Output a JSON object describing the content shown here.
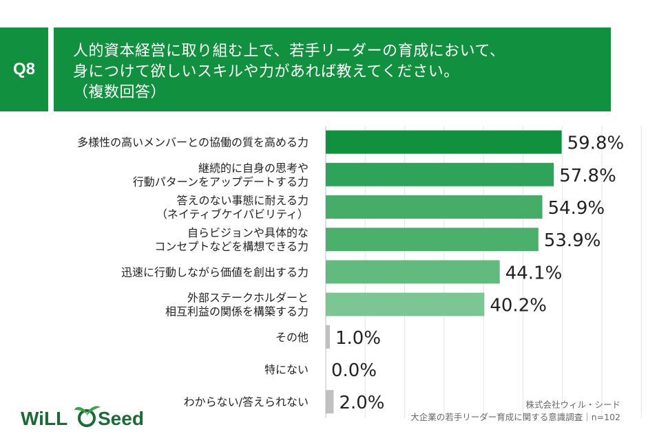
{
  "question": {
    "badge": "Q8",
    "lines": [
      "人的資本経営に取り組む上で、若手リーダーの育成において、",
      "身につけて欲しいスキルや力があれば教えてください。",
      "（複数回答）"
    ]
  },
  "chart_data": {
    "type": "bar",
    "orientation": "horizontal",
    "unit": "%",
    "xlim": [
      0,
      100
    ],
    "grid": true,
    "categories": [
      [
        "多様性の高いメンバーとの協働の質を高める力"
      ],
      [
        "継続的に自身の思考や",
        "行動パターンをアップデートする力"
      ],
      [
        "答えのない事態に耐える力",
        "（ネイティブケイパビリティ）"
      ],
      [
        "自らビジョンや具体的な",
        "コンセプトなどを構想できる力"
      ],
      [
        "迅速に行動しながら価値を創出する力"
      ],
      [
        "外部ステークホルダーと",
        "相互利益の関係を構築する力"
      ],
      [
        "その他"
      ],
      [
        "特にない"
      ],
      [
        "わからない/答えられない"
      ]
    ],
    "values": [
      59.8,
      57.8,
      54.9,
      53.9,
      44.1,
      40.2,
      1.0,
      0.0,
      2.0
    ],
    "value_labels": [
      "59.8%",
      "57.8%",
      "54.9%",
      "53.9%",
      "44.1%",
      "40.2%",
      "1.0%",
      "0.0%",
      "2.0%"
    ],
    "colors": [
      "#11913f",
      "#2fa35a",
      "#45ad68",
      "#4ab06b",
      "#61bb7e",
      "#7cc693",
      "#c0c0c0",
      "#c0c0c0",
      "#c0c0c0"
    ]
  },
  "footer": {
    "company": "株式会社ウィル・シード",
    "source": "大企業の若手リーダー育成に関する意識調査｜n=102"
  },
  "logo": {
    "text_left": "WiLL",
    "text_right": "Seed",
    "brand_color": "#1a6a35"
  }
}
